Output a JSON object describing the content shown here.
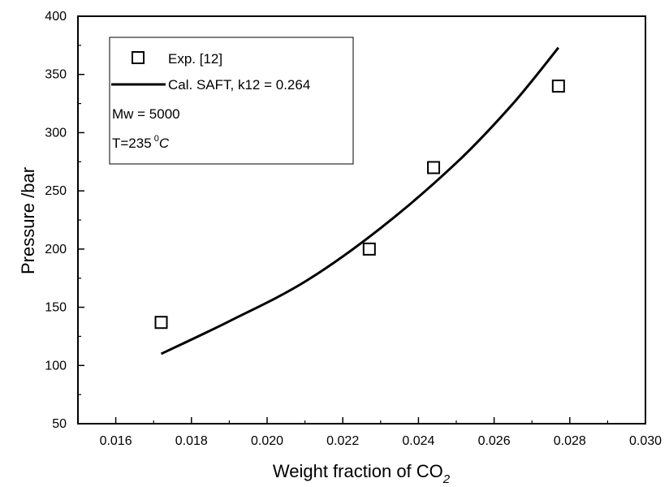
{
  "chart_data": {
    "type": "scatter",
    "xlabel": "Weight fraction of CO",
    "xlabel_subscript": "2",
    "ylabel": "Pressure /bar",
    "xlim": [
      0.015,
      0.03
    ],
    "ylim": [
      50,
      400
    ],
    "x_ticks": [
      "0.016",
      "0.018",
      "0.020",
      "0.022",
      "0.024",
      "0.026",
      "0.028",
      "0.030"
    ],
    "y_ticks": [
      "50",
      "100",
      "150",
      "200",
      "250",
      "300",
      "350",
      "400"
    ],
    "legend_placement": "top-left",
    "grid": false,
    "series": [
      {
        "name": "Exp. [12]",
        "kind": "markers",
        "marker": "open-square",
        "x": [
          0.0172,
          0.0227,
          0.0244,
          0.0277
        ],
        "y": [
          137,
          200,
          270,
          340
        ]
      },
      {
        "name": "Cal. SAFT, k12 = 0.264",
        "kind": "line",
        "x": [
          0.0172,
          0.019,
          0.021,
          0.023,
          0.025,
          0.0265,
          0.0277
        ],
        "y": [
          110,
          138,
          172,
          218,
          274,
          325,
          373
        ]
      }
    ],
    "annotations": [
      "Mw = 5000",
      "T=235",
      "0",
      "C"
    ]
  },
  "colors": {
    "axis": "#000000",
    "series": "#000000",
    "background": "#ffffff"
  }
}
